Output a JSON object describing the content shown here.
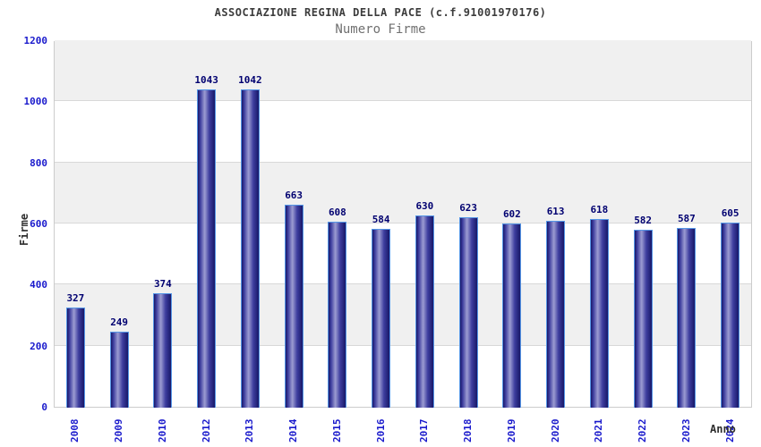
{
  "header": {
    "title": "ASSOCIAZIONE REGINA DELLA PACE (c.f.91001970176)",
    "subtitle": "Numero Firme"
  },
  "chart_data": {
    "type": "bar",
    "title": "ASSOCIAZIONE REGINA DELLA PACE (c.f.91001970176)",
    "subtitle": "Numero Firme",
    "xlabel": "Anno",
    "ylabel": "Firme",
    "categories": [
      "2008",
      "2009",
      "2010",
      "2012",
      "2013",
      "2014",
      "2015",
      "2016",
      "2017",
      "2018",
      "2019",
      "2020",
      "2021",
      "2022",
      "2023",
      "2024"
    ],
    "values": [
      327,
      249,
      374,
      1043,
      1042,
      663,
      608,
      584,
      630,
      623,
      602,
      613,
      618,
      582,
      587,
      605
    ],
    "ylim": [
      0,
      1200
    ],
    "yticks": [
      0,
      200,
      400,
      600,
      800,
      1000,
      1200
    ],
    "grid": "horizontal-bands",
    "legend": "none",
    "colors": {
      "title": "#3c3c3c",
      "subtitle": "#707070",
      "axis_title": "#2e2e2e",
      "tick_label": "#1a1acc",
      "value_label": "#000070",
      "bar_border": "#5596e6",
      "bar_dark": "#181868",
      "bar_mid": "#3d3d9e",
      "bar_light": "#9c9cd2",
      "band_gray": "#f0f0f0",
      "band_white": "#ffffff",
      "gridline": "#d8d8d8",
      "plot_border": "#cccccc",
      "background": "#ffffff"
    }
  }
}
